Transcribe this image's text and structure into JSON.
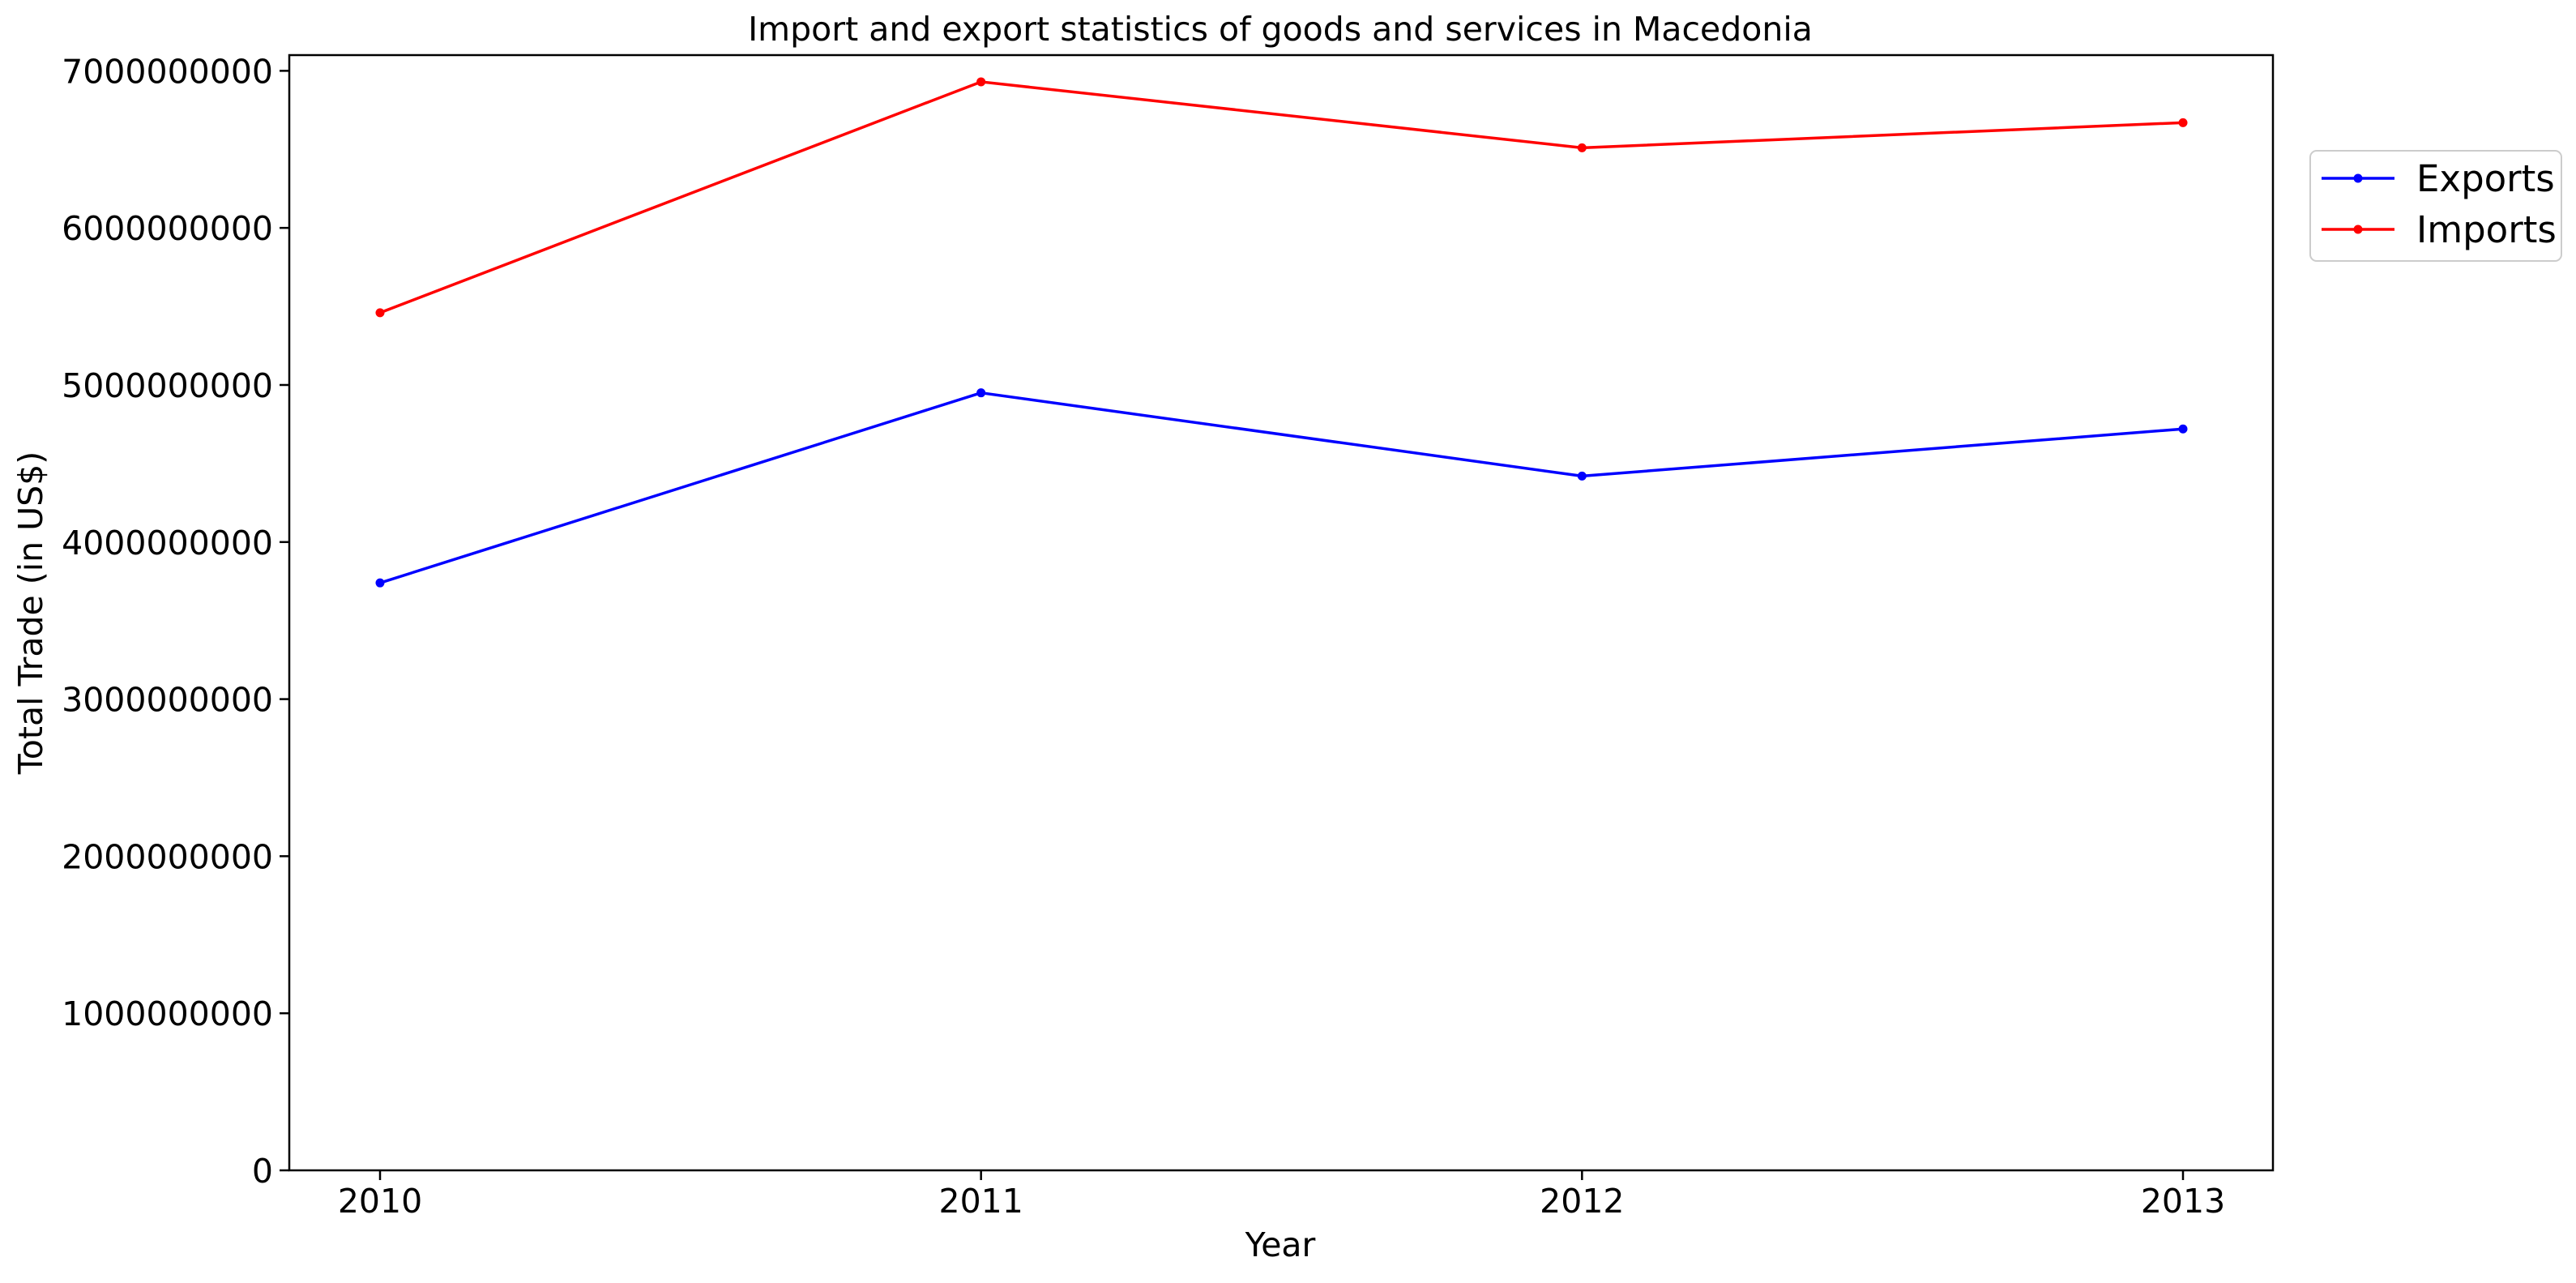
{
  "chart_data": {
    "type": "line",
    "title": "Import and export statistics of goods and services in Macedonia",
    "xlabel": "Year",
    "ylabel": "Total Trade (in US$)",
    "categories": [
      "2010",
      "2011",
      "2012",
      "2013"
    ],
    "yticks": [
      "0",
      "1000000000",
      "2000000000",
      "3000000000",
      "4000000000",
      "5000000000",
      "6000000000",
      "7000000000"
    ],
    "ylim": [
      0,
      7100000000
    ],
    "grid": false,
    "legend_position": "outside top-right",
    "series": [
      {
        "name": "Exports",
        "color": "#0000ff",
        "values": [
          3740000000,
          4950000000,
          4420000000,
          4720000000
        ]
      },
      {
        "name": "Imports",
        "color": "#ff0000",
        "values": [
          5460000000,
          6930000000,
          6510000000,
          6670000000
        ]
      }
    ]
  }
}
